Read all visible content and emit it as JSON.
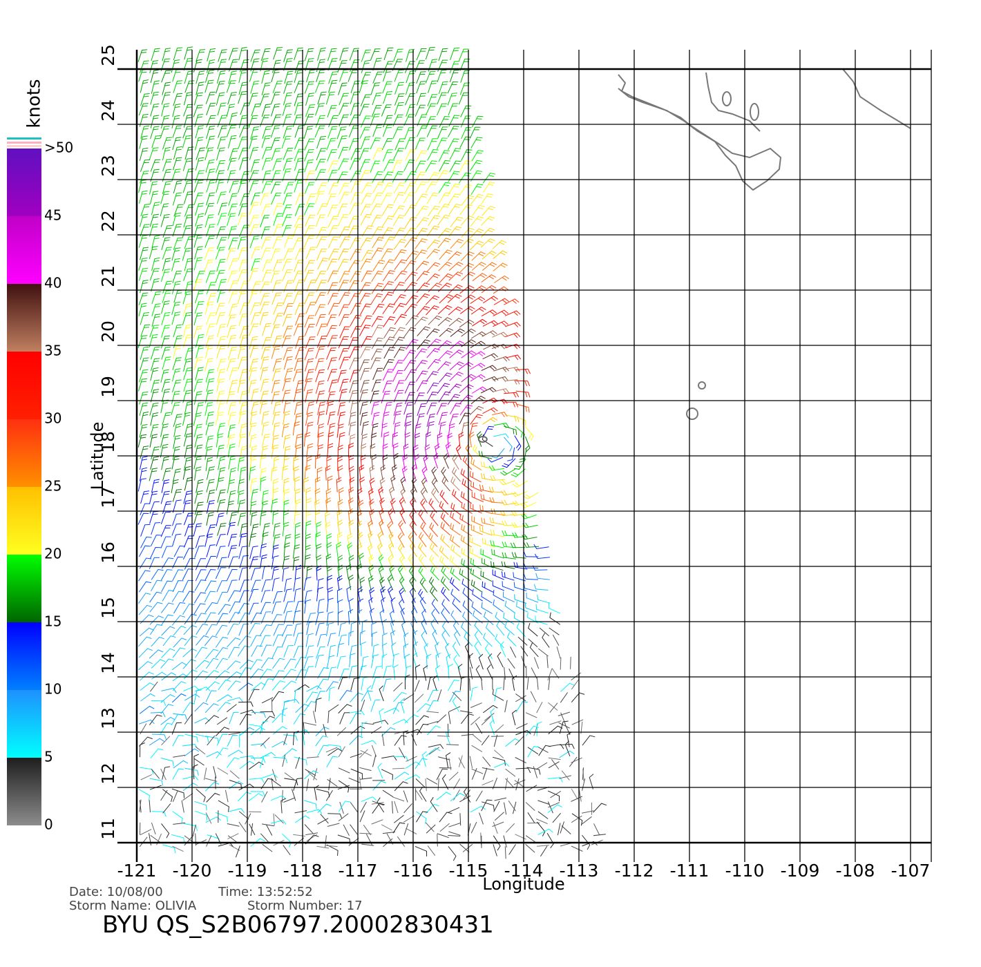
{
  "map": {
    "xlabel": "Longitude",
    "ylabel": "Latitude",
    "xlim": [
      -121,
      -106.625
    ],
    "ylim": [
      11,
      25
    ],
    "xticks": [
      -121,
      -120,
      -119,
      -118,
      -117,
      -116,
      -115,
      -114,
      -113,
      -112,
      -111,
      -110,
      -109,
      -108,
      -107
    ],
    "yticks": [
      11,
      12,
      13,
      14,
      15,
      16,
      17,
      18,
      19,
      20,
      21,
      22,
      23,
      24,
      25
    ],
    "grid": true,
    "storm_center": [
      -114.74,
      18.3
    ],
    "colorbar": {
      "title": "knots",
      "lim": [
        0,
        50
      ],
      "ticks": [
        0,
        5,
        10,
        15,
        20,
        25,
        30,
        35,
        40,
        45,
        {
          "value": 50,
          "label": ">50"
        }
      ],
      "colors": [
        [
          "#8c8c8c",
          "#1e1e1e"
        ],
        [
          "#00ffff",
          "#1e90ff"
        ],
        [
          "#0080ff",
          "#0000ff"
        ],
        [
          "#006400",
          "#00ff00"
        ],
        [
          "#ffff20",
          "#ffc000"
        ],
        [
          "#ff9000",
          "#ff3010"
        ],
        [
          "#ff2000",
          "#ff0000"
        ],
        [
          "#c08060",
          "#401010"
        ],
        [
          "#ff00ff",
          "#c000c8"
        ],
        [
          "#a000c0",
          "#6010c0"
        ]
      ]
    },
    "info": {
      "date": "Date: 10/08/00",
      "time": "Time: 13:52:52",
      "storm_name": "Storm Name: OLIVIA",
      "storm_number": "Storm Number: 17",
      "product": "BYU QS_S2B06797.20002830431"
    }
  }
}
